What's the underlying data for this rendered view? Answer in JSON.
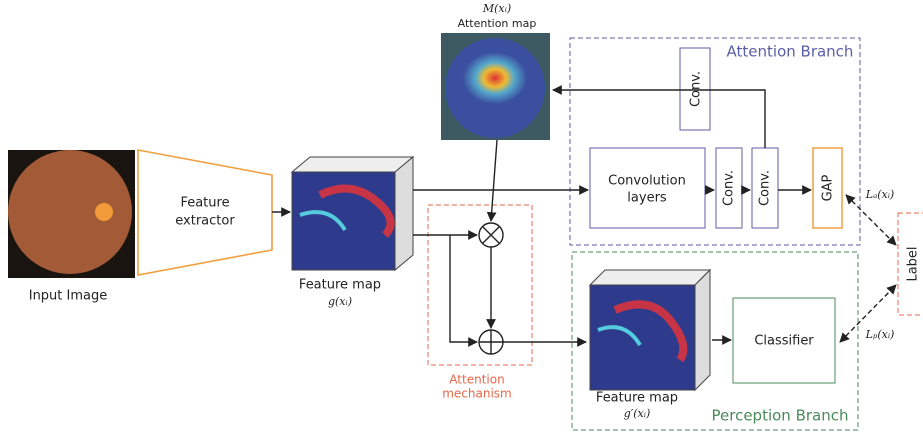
{
  "input": {
    "label": "Input Image"
  },
  "extractor": {
    "label": [
      "Feature",
      "extractor"
    ]
  },
  "feature_map": {
    "label": "Feature map",
    "symbol": "g(xᵢ)"
  },
  "attention_map": {
    "symbol": "M(xᵢ)",
    "label": "Attention map"
  },
  "attention_branch": {
    "title": "Attention Branch",
    "conv_top": "Conv.",
    "convolution_layers": [
      "Convolution",
      "layers"
    ],
    "conv_1": "Conv.",
    "conv_2": "Conv.",
    "gap": "GAP",
    "loss": "Lₐ(xᵢ)"
  },
  "attention_mechanism": {
    "label": [
      "Attention",
      "mechanism"
    ]
  },
  "perception_branch": {
    "title": "Perception Branch",
    "feature_map_label": "Feature map",
    "feature_map_symbol": "g′(xᵢ)",
    "classifier": "Classifier",
    "loss": "Lₚ(xᵢ)"
  },
  "output": {
    "label": "Label"
  }
}
